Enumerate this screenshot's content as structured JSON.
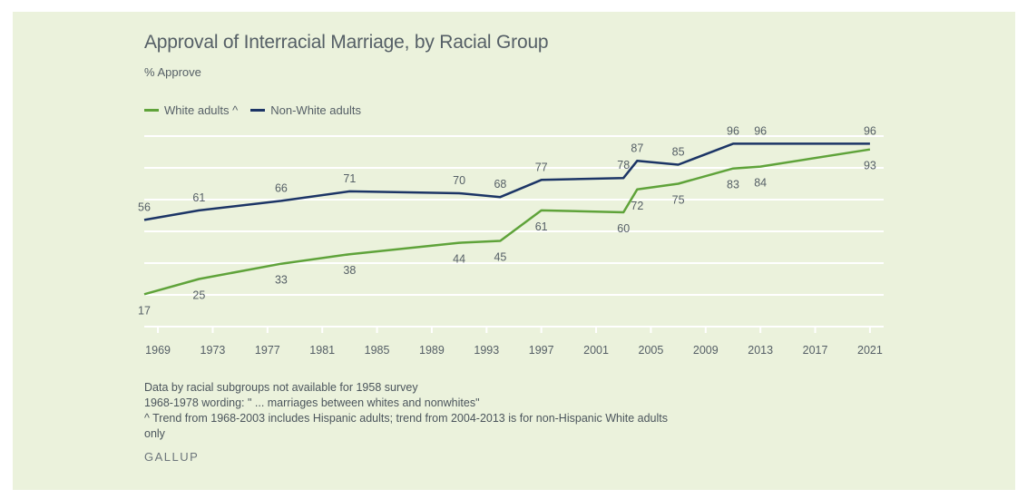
{
  "header": {
    "title": "Approval of Interracial Marriage, by Racial Group",
    "subtitle": "% Approve"
  },
  "colors": {
    "background": "#ebf2dc",
    "white_series": "#5fa33a",
    "nonwhite_series": "#1c3566",
    "grid": "#ffffff",
    "text": "#555f66"
  },
  "chart_data": {
    "type": "line",
    "title": "Approval of Interracial Marriage, by Racial Group",
    "ylabel": "% Approve",
    "xlabel": "",
    "xlim": [
      1968,
      2022
    ],
    "ylim": [
      0,
      100
    ],
    "grid": true,
    "legend_position": "top-left",
    "x_ticks": [
      "1969",
      "1973",
      "1977",
      "1981",
      "1985",
      "1989",
      "1993",
      "1997",
      "2001",
      "2005",
      "2009",
      "2013",
      "2017",
      "2021"
    ],
    "series": [
      {
        "name": "White adults ^",
        "color": "#5fa33a",
        "points": [
          {
            "x": 1968,
            "y": 17,
            "label": "17"
          },
          {
            "x": 1972,
            "y": 25,
            "label": "25"
          },
          {
            "x": 1978,
            "y": 33,
            "label": "33"
          },
          {
            "x": 1983,
            "y": 38,
            "label": "38"
          },
          {
            "x": 1991,
            "y": 44,
            "label": "44"
          },
          {
            "x": 1994,
            "y": 45,
            "label": "45"
          },
          {
            "x": 1997,
            "y": 61,
            "label": "61"
          },
          {
            "x": 2003,
            "y": 60,
            "label": "60"
          },
          {
            "x": 2004,
            "y": 72,
            "label": "72"
          },
          {
            "x": 2007,
            "y": 75,
            "label": "75"
          },
          {
            "x": 2011,
            "y": 83,
            "label": "83"
          },
          {
            "x": 2013,
            "y": 84,
            "label": "84"
          },
          {
            "x": 2021,
            "y": 93,
            "label": "93"
          }
        ]
      },
      {
        "name": "Non-White adults",
        "color": "#1c3566",
        "points": [
          {
            "x": 1968,
            "y": 56,
            "label": "56"
          },
          {
            "x": 1972,
            "y": 61,
            "label": "61"
          },
          {
            "x": 1978,
            "y": 66,
            "label": "66"
          },
          {
            "x": 1983,
            "y": 71,
            "label": "71"
          },
          {
            "x": 1991,
            "y": 70,
            "label": "70"
          },
          {
            "x": 1994,
            "y": 68,
            "label": "68"
          },
          {
            "x": 1997,
            "y": 77,
            "label": "77"
          },
          {
            "x": 2003,
            "y": 78,
            "label": "78"
          },
          {
            "x": 2004,
            "y": 87,
            "label": "87"
          },
          {
            "x": 2007,
            "y": 85,
            "label": "85"
          },
          {
            "x": 2011,
            "y": 96,
            "label": "96"
          },
          {
            "x": 2013,
            "y": 96,
            "label": "96"
          },
          {
            "x": 2021,
            "y": 96,
            "label": "96"
          }
        ]
      }
    ]
  },
  "notes": [
    "Data by racial subgroups not available for 1958 survey",
    "1968-1978 wording: \" ... marriages between whites and nonwhites\"",
    "^ Trend from 1968-2003 includes Hispanic adults; trend from 2004-2013 is for non-Hispanic White adults",
    "only"
  ],
  "brand": "GALLUP"
}
